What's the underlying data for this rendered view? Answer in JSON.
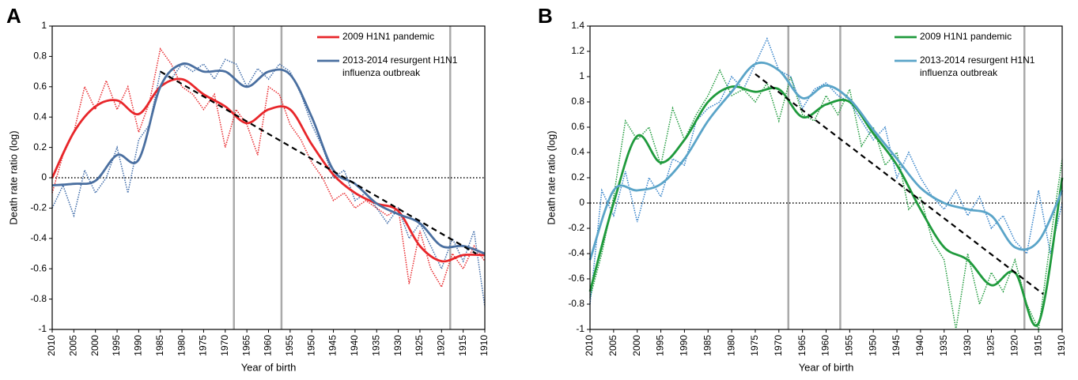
{
  "chart_data": [
    {
      "type": "line",
      "panel": "A",
      "x_label": "Year of birth",
      "y_label": "Death rate ratio (log)",
      "xlim": [
        2010,
        1910
      ],
      "xticks": [
        2010,
        2005,
        2000,
        1995,
        1990,
        1985,
        1980,
        1975,
        1970,
        1965,
        1960,
        1955,
        1950,
        1945,
        1940,
        1935,
        1930,
        1925,
        1920,
        1915,
        1910
      ],
      "ylim": [
        -1,
        1
      ],
      "yticks": [
        -1,
        -0.8,
        -0.6,
        -0.4,
        -0.2,
        0,
        0.2,
        0.4,
        0.6,
        0.8,
        1
      ],
      "legend": "upper right",
      "reference_y": 0,
      "vlines": [
        1968,
        1957,
        1918
      ],
      "trend": {
        "x": [
          1985,
          1912
        ],
        "y": [
          0.7,
          -0.5
        ]
      },
      "series": [
        {
          "color": "#e8262a",
          "style": "dotted",
          "x": [
            2010,
            2007.5,
            2005,
            2002.5,
            2000,
            1997.5,
            1995,
            1992.5,
            1990,
            1987.5,
            1985,
            1982.5,
            1980,
            1977.5,
            1975,
            1972.5,
            1970,
            1967.5,
            1965,
            1962.5,
            1960,
            1957.5,
            1955,
            1952.5,
            1950,
            1947.5,
            1945,
            1942.5,
            1940,
            1937.5,
            1935,
            1932.5,
            1930,
            1927.5,
            1925,
            1922.5,
            1920,
            1917.5,
            1915,
            1912.5,
            1910
          ],
          "values": [
            -0.1,
            0.15,
            0.3,
            0.6,
            0.45,
            0.64,
            0.45,
            0.6,
            0.3,
            0.5,
            0.85,
            0.75,
            0.6,
            0.55,
            0.45,
            0.55,
            0.2,
            0.45,
            0.35,
            0.15,
            0.6,
            0.55,
            0.35,
            0.25,
            0.1,
            0.0,
            -0.15,
            -0.1,
            -0.2,
            -0.15,
            -0.2,
            -0.25,
            -0.2,
            -0.7,
            -0.35,
            -0.6,
            -0.72,
            -0.5,
            -0.6,
            -0.45,
            -0.55
          ]
        },
        {
          "color": "#3d6aa8",
          "style": "dotted",
          "x": [
            2010,
            2007.5,
            2005,
            2002.5,
            2000,
            1997.5,
            1995,
            1992.5,
            1990,
            1987.5,
            1985,
            1982.5,
            1980,
            1977.5,
            1975,
            1972.5,
            1970,
            1967.5,
            1965,
            1962.5,
            1960,
            1957.5,
            1955,
            1952.5,
            1950,
            1947.5,
            1945,
            1942.5,
            1940,
            1937.5,
            1935,
            1932.5,
            1930,
            1927.5,
            1925,
            1922.5,
            1920,
            1917.5,
            1915,
            1912.5,
            1910
          ],
          "values": [
            -0.2,
            -0.05,
            -0.25,
            0.05,
            -0.1,
            0.0,
            0.2,
            -0.1,
            0.25,
            0.35,
            0.7,
            0.65,
            0.75,
            0.7,
            0.75,
            0.65,
            0.78,
            0.75,
            0.6,
            0.72,
            0.65,
            0.75,
            0.7,
            0.55,
            0.35,
            0.2,
            0.0,
            0.05,
            -0.15,
            -0.1,
            -0.2,
            -0.3,
            -0.2,
            -0.4,
            -0.3,
            -0.45,
            -0.6,
            -0.4,
            -0.55,
            -0.35,
            -0.85
          ]
        },
        {
          "name": "2009 H1N1 pandemic",
          "color": "#e8262a",
          "style": "solid",
          "x": [
            2010,
            2005,
            2000,
            1995,
            1990,
            1985,
            1980,
            1975,
            1970,
            1965,
            1960,
            1955,
            1950,
            1945,
            1940,
            1935,
            1930,
            1925,
            1920,
            1915,
            1910
          ],
          "values": [
            0.0,
            0.3,
            0.47,
            0.51,
            0.42,
            0.6,
            0.65,
            0.55,
            0.47,
            0.36,
            0.45,
            0.45,
            0.22,
            0.02,
            -0.1,
            -0.17,
            -0.22,
            -0.45,
            -0.55,
            -0.51,
            -0.51
          ]
        },
        {
          "name": "2013-2014 resurgent H1N1 influenza outbreak",
          "color": "#4a6fa0",
          "style": "solid",
          "x": [
            2010,
            2005,
            2000,
            1995,
            1990,
            1985,
            1980,
            1975,
            1970,
            1965,
            1960,
            1955,
            1950,
            1945,
            1940,
            1935,
            1930,
            1925,
            1920,
            1915,
            1910
          ],
          "values": [
            -0.05,
            -0.04,
            -0.02,
            0.15,
            0.12,
            0.6,
            0.75,
            0.7,
            0.7,
            0.6,
            0.7,
            0.68,
            0.4,
            0.05,
            -0.04,
            -0.17,
            -0.24,
            -0.3,
            -0.45,
            -0.45,
            -0.5
          ]
        }
      ]
    },
    {
      "type": "line",
      "panel": "B",
      "x_label": "Year of birth",
      "y_label": "Death rate ratio (log)",
      "xlim": [
        2010,
        1910
      ],
      "xticks": [
        2010,
        2005,
        2000,
        1995,
        1990,
        1985,
        1980,
        1975,
        1970,
        1965,
        1960,
        1955,
        1950,
        1945,
        1940,
        1935,
        1930,
        1925,
        1920,
        1915,
        1910
      ],
      "ylim": [
        -1,
        1.4
      ],
      "yticks": [
        -1,
        -0.8,
        -0.6,
        -0.4,
        -0.2,
        0,
        0.2,
        0.4,
        0.6,
        0.8,
        1,
        1.2,
        1.4
      ],
      "legend": "upper right",
      "reference_y": 0,
      "vlines": [
        1968,
        1957,
        1918
      ],
      "trend": {
        "x": [
          1975,
          1914
        ],
        "y": [
          1.02,
          -0.72
        ]
      },
      "series": [
        {
          "color": "#1f9a3c",
          "style": "dotted",
          "x": [
            2010,
            2007.5,
            2005,
            2002.5,
            2000,
            1997.5,
            1995,
            1992.5,
            1990,
            1987.5,
            1985,
            1982.5,
            1980,
            1977.5,
            1975,
            1972.5,
            1970,
            1967.5,
            1965,
            1962.5,
            1960,
            1957.5,
            1955,
            1952.5,
            1950,
            1947.5,
            1945,
            1942.5,
            1940,
            1937.5,
            1935,
            1932.5,
            1930,
            1927.5,
            1925,
            1922.5,
            1920,
            1917.5,
            1915,
            1912.5,
            1910
          ],
          "values": [
            -0.75,
            -0.4,
            0.05,
            0.65,
            0.5,
            0.6,
            0.3,
            0.75,
            0.5,
            0.7,
            0.85,
            1.05,
            0.85,
            0.9,
            0.8,
            0.95,
            0.65,
            1.0,
            0.7,
            0.65,
            0.85,
            0.7,
            0.9,
            0.45,
            0.6,
            0.3,
            0.4,
            -0.05,
            0.05,
            -0.3,
            -0.45,
            -1.0,
            -0.4,
            -0.8,
            -0.55,
            -0.7,
            -0.45,
            -0.8,
            -1.0,
            -0.3,
            0.35
          ]
        },
        {
          "color": "#2f7fc8",
          "style": "dotted",
          "x": [
            2010,
            2007.5,
            2005,
            2002.5,
            2000,
            1997.5,
            1995,
            1992.5,
            1990,
            1987.5,
            1985,
            1982.5,
            1980,
            1977.5,
            1975,
            1972.5,
            1970,
            1967.5,
            1965,
            1962.5,
            1960,
            1957.5,
            1955,
            1952.5,
            1950,
            1947.5,
            1945,
            1942.5,
            1940,
            1937.5,
            1935,
            1932.5,
            1930,
            1927.5,
            1925,
            1922.5,
            1920,
            1917.5,
            1915,
            1912.5,
            1910
          ],
          "values": [
            -0.8,
            0.1,
            -0.1,
            0.25,
            -0.15,
            0.2,
            0.05,
            0.35,
            0.3,
            0.65,
            0.75,
            0.8,
            1.0,
            0.9,
            1.1,
            1.3,
            1.05,
            1.0,
            0.75,
            0.9,
            0.95,
            0.85,
            0.8,
            0.65,
            0.5,
            0.6,
            0.2,
            0.4,
            0.2,
            0.05,
            -0.05,
            0.1,
            -0.1,
            0.05,
            -0.2,
            -0.1,
            -0.3,
            -0.4,
            0.1,
            -0.4,
            0.0
          ]
        },
        {
          "name": "2009 H1N1 pandemic",
          "color": "#1f9a3c",
          "style": "solid",
          "x": [
            2010,
            2005,
            2000,
            1995,
            1990,
            1985,
            1980,
            1975,
            1970,
            1965,
            1960,
            1955,
            1950,
            1945,
            1940,
            1935,
            1930,
            1925,
            1920,
            1915,
            1910
          ],
          "values": [
            -0.7,
            0.0,
            0.53,
            0.32,
            0.5,
            0.8,
            0.92,
            0.88,
            0.9,
            0.68,
            0.78,
            0.8,
            0.55,
            0.3,
            -0.05,
            -0.35,
            -0.45,
            -0.65,
            -0.55,
            -0.95,
            0.2
          ]
        },
        {
          "name": "2013-2014 resurgent H1N1 influenza outbreak",
          "color": "#5aa4c8",
          "style": "solid",
          "x": [
            2010,
            2005,
            2000,
            1995,
            1990,
            1985,
            1980,
            1975,
            1970,
            1965,
            1960,
            1955,
            1950,
            1945,
            1940,
            1935,
            1930,
            1925,
            1920,
            1915,
            1910
          ],
          "values": [
            -0.45,
            0.1,
            0.1,
            0.15,
            0.35,
            0.65,
            0.88,
            1.1,
            1.05,
            0.83,
            0.93,
            0.82,
            0.58,
            0.35,
            0.12,
            0.0,
            -0.05,
            -0.1,
            -0.35,
            -0.3,
            0.1
          ]
        }
      ]
    }
  ]
}
